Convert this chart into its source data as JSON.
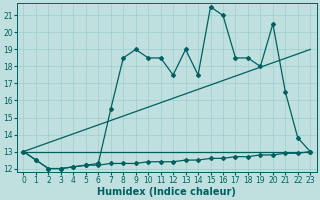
{
  "xlabel": "Humidex (Indice chaleur)",
  "bg_color": "#c0e0e0",
  "grid_color": "#a0cccc",
  "line_color": "#006060",
  "xlim": [
    -0.5,
    23.5
  ],
  "ylim": [
    11.8,
    21.7
  ],
  "yticks": [
    12,
    13,
    14,
    15,
    16,
    17,
    18,
    19,
    20,
    21
  ],
  "xticks": [
    0,
    1,
    2,
    3,
    4,
    5,
    6,
    7,
    8,
    9,
    10,
    11,
    12,
    13,
    14,
    15,
    16,
    17,
    18,
    19,
    20,
    21,
    22,
    23
  ],
  "series_bottom_x": [
    0,
    1,
    2,
    3,
    4,
    5,
    6,
    7,
    8,
    9,
    10,
    11,
    12,
    13,
    14,
    15,
    16,
    17,
    18,
    19,
    20,
    21,
    22,
    23
  ],
  "series_bottom_y": [
    13.0,
    12.5,
    12.0,
    12.0,
    12.1,
    12.2,
    12.2,
    12.3,
    12.3,
    12.3,
    12.4,
    12.4,
    12.4,
    12.5,
    12.5,
    12.6,
    12.6,
    12.7,
    12.7,
    12.8,
    12.8,
    12.9,
    12.9,
    13.0
  ],
  "series_main_x": [
    0,
    1,
    2,
    3,
    4,
    5,
    6,
    7,
    8,
    9,
    10,
    11,
    12,
    13,
    14,
    15,
    16,
    17,
    18,
    19,
    20,
    21,
    22,
    23
  ],
  "series_main_y": [
    13.0,
    12.5,
    12.0,
    12.0,
    12.1,
    12.2,
    12.3,
    15.5,
    18.5,
    19.0,
    18.5,
    18.5,
    17.5,
    19.0,
    17.5,
    21.5,
    21.0,
    18.5,
    18.5,
    18.0,
    20.5,
    16.5,
    13.8,
    13.0
  ],
  "trend1_x": [
    0,
    23
  ],
  "trend1_y": [
    13.0,
    19.0
  ],
  "trend2_x": [
    0,
    23
  ],
  "trend2_y": [
    13.0,
    13.0
  ],
  "marker": "D",
  "markersize": 2.0,
  "linewidth": 0.9,
  "fontsize_label": 7,
  "fontsize_tick": 5.5
}
